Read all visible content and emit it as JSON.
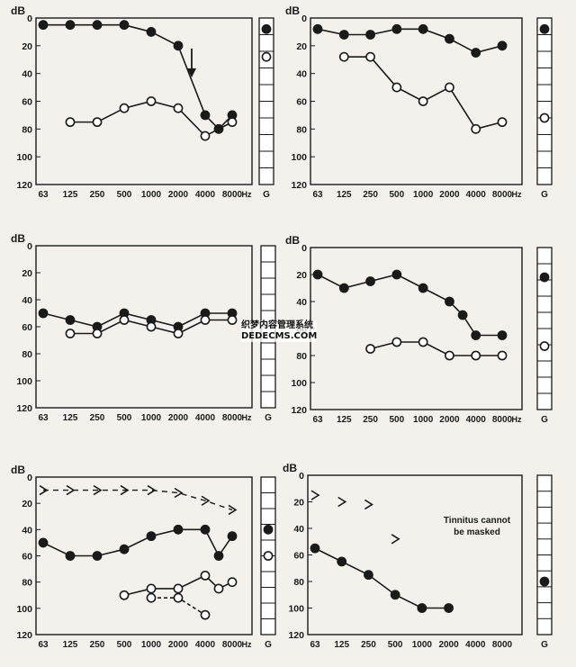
{
  "chart_data": [
    {
      "type": "line",
      "ylabel": "dB",
      "x_ticks": [
        "63",
        "125",
        "250",
        "500",
        "1000",
        "2000",
        "4000",
        "8000"
      ],
      "x_unit": "Hz",
      "y_ticks": [
        "0",
        "20",
        "40",
        "60",
        "80",
        "100",
        "120"
      ],
      "ylim": [
        0,
        120
      ],
      "y_inverted": true,
      "strip_label": "G",
      "series": [
        {
          "style": "filled",
          "line": "solid",
          "x": [
            0,
            1,
            2,
            3,
            4,
            5,
            6,
            6.5,
            7
          ],
          "y": [
            5,
            5,
            5,
            5,
            10,
            20,
            70,
            80,
            70
          ]
        },
        {
          "style": "open",
          "line": "solid",
          "x": [
            1,
            2,
            3,
            4,
            5,
            6,
            7
          ],
          "y": [
            75,
            75,
            65,
            60,
            65,
            85,
            75
          ]
        }
      ],
      "annotations": [
        {
          "kind": "down-arrow",
          "at_x": 5.5
        }
      ],
      "strip_markers": [
        {
          "style": "filled",
          "y": 8
        },
        {
          "style": "open",
          "y": 28
        }
      ]
    },
    {
      "type": "line",
      "ylabel": "dB",
      "x_ticks": [
        "63",
        "125",
        "250",
        "500",
        "1000",
        "2000",
        "4000",
        "8000"
      ],
      "x_unit": "Hz",
      "y_ticks": [
        "0",
        "20",
        "40",
        "60",
        "80",
        "100",
        "120"
      ],
      "ylim": [
        0,
        120
      ],
      "y_inverted": true,
      "strip_label": "G",
      "series": [
        {
          "style": "filled",
          "line": "solid",
          "x": [
            0,
            1,
            2,
            3,
            4,
            5,
            6,
            7
          ],
          "y": [
            8,
            12,
            12,
            8,
            8,
            15,
            25,
            20
          ]
        },
        {
          "style": "open",
          "line": "solid",
          "x": [
            1,
            2,
            3,
            4,
            5,
            6,
            7
          ],
          "y": [
            28,
            28,
            50,
            60,
            50,
            80,
            75
          ]
        }
      ],
      "strip_markers": [
        {
          "style": "filled",
          "y": 8
        },
        {
          "style": "open",
          "y": 72
        }
      ]
    },
    {
      "type": "line",
      "ylabel": "dB",
      "x_ticks": [
        "63",
        "125",
        "250",
        "500",
        "1000",
        "2000",
        "4000",
        "8000"
      ],
      "x_unit": "Hz",
      "y_ticks": [
        "0",
        "20",
        "40",
        "60",
        "80",
        "100",
        "120"
      ],
      "ylim": [
        0,
        120
      ],
      "y_inverted": true,
      "strip_label": "G",
      "series": [
        {
          "style": "filled",
          "line": "solid",
          "x": [
            0,
            1,
            2,
            3,
            4,
            5,
            6,
            7
          ],
          "y": [
            50,
            55,
            60,
            50,
            55,
            60,
            50,
            50
          ]
        },
        {
          "style": "open",
          "line": "solid",
          "x": [
            1,
            2,
            3,
            4,
            5,
            6,
            7
          ],
          "y": [
            65,
            65,
            55,
            60,
            65,
            55,
            55
          ]
        }
      ],
      "strip_markers": []
    },
    {
      "type": "line",
      "ylabel": "dB",
      "x_ticks": [
        "63",
        "125",
        "250",
        "500",
        "1000",
        "2000",
        "4000",
        "8000"
      ],
      "x_unit": "Hz",
      "y_ticks": [
        "0",
        "20",
        "40",
        "60",
        "80",
        "100",
        "120"
      ],
      "ylim": [
        0,
        120
      ],
      "y_inverted": true,
      "strip_label": "G",
      "series": [
        {
          "style": "filled",
          "line": "solid",
          "x": [
            0,
            1,
            2,
            3,
            4,
            5,
            5.5,
            6,
            7
          ],
          "y": [
            20,
            30,
            25,
            20,
            30,
            40,
            50,
            65,
            65
          ]
        },
        {
          "style": "open",
          "line": "solid",
          "x": [
            2,
            3,
            4,
            5,
            6,
            7
          ],
          "y": [
            75,
            70,
            70,
            80,
            80,
            80
          ]
        }
      ],
      "strip_markers": [
        {
          "style": "filled",
          "y": 22
        },
        {
          "style": "open",
          "y": 73
        }
      ]
    },
    {
      "type": "line",
      "ylabel": "dB",
      "x_ticks": [
        "63",
        "125",
        "250",
        "500",
        "1000",
        "2000",
        "4000",
        "8000"
      ],
      "x_unit": "Hz",
      "y_ticks": [
        "0",
        "20",
        "40",
        "60",
        "80",
        "100",
        "120"
      ],
      "ylim": [
        0,
        120
      ],
      "y_inverted": true,
      "strip_label": "G",
      "series": [
        {
          "style": "filled",
          "line": "solid",
          "x": [
            0,
            1,
            2,
            3,
            4,
            5,
            6,
            6.5,
            7
          ],
          "y": [
            50,
            60,
            60,
            55,
            45,
            40,
            40,
            60,
            45
          ]
        },
        {
          "style": "open",
          "line": "solid",
          "x": [
            3,
            4,
            5,
            6,
            6.5,
            7
          ],
          "y": [
            90,
            85,
            85,
            75,
            85,
            80
          ]
        },
        {
          "style": "open",
          "line": "dashed",
          "x": [
            4,
            5,
            6
          ],
          "y": [
            92,
            92,
            105
          ]
        },
        {
          "style": "arrow",
          "line": "dashed",
          "x": [
            0,
            1,
            2,
            3,
            4,
            5,
            6,
            7
          ],
          "y": [
            10,
            10,
            10,
            10,
            10,
            12,
            18,
            25
          ]
        }
      ],
      "strip_markers": [
        {
          "style": "filled",
          "y": 40
        },
        {
          "style": "open",
          "y": 60
        }
      ]
    },
    {
      "type": "line",
      "ylabel": "dB",
      "x_ticks": [
        "63",
        "125",
        "250",
        "500",
        "1000",
        "2000",
        "4000",
        "8000"
      ],
      "y_ticks": [
        "0",
        "20",
        "40",
        "60",
        "80",
        "100",
        "120"
      ],
      "ylim": [
        0,
        120
      ],
      "y_inverted": true,
      "strip_label": "G",
      "series": [
        {
          "style": "filled",
          "line": "solid",
          "x": [
            0,
            1,
            2,
            3,
            4,
            5
          ],
          "y": [
            55,
            65,
            75,
            90,
            100,
            100
          ]
        },
        {
          "style": "arrow",
          "line": "none",
          "x": [
            0,
            1,
            2,
            3
          ],
          "y": [
            15,
            20,
            22,
            48
          ]
        }
      ],
      "annotations": [
        {
          "kind": "text",
          "text": "Tinnitus cannot be masked"
        }
      ],
      "strip_markers": [
        {
          "style": "filled",
          "y": 80
        }
      ]
    }
  ],
  "watermark": {
    "line1": "织梦内容管理系统",
    "line2": "DEDECMS.COM"
  }
}
